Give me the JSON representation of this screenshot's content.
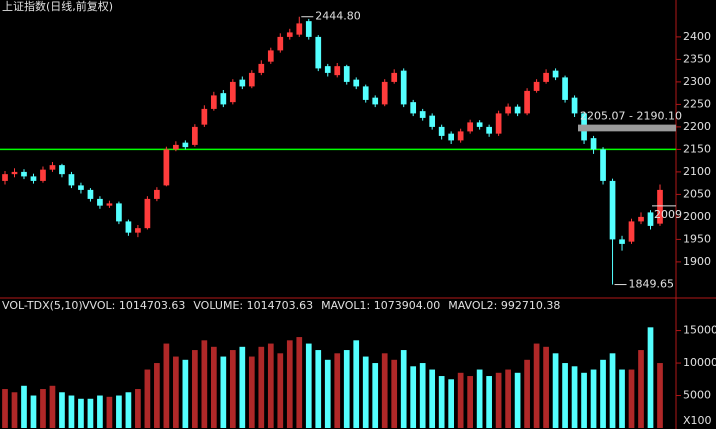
{
  "chart_data": [
    {
      "type": "candlestick",
      "title": "上证指数(日线,前复权)",
      "up_color": "#ff3c3c",
      "down_color": "#54ffff",
      "open": [
        2080,
        2095,
        2100,
        2090,
        2080,
        2105,
        2115,
        2095,
        2070,
        2060,
        2040,
        2025,
        2030,
        1990,
        1965,
        1975,
        2040,
        2070,
        2150,
        2165,
        2160,
        2205,
        2240,
        2275,
        2255,
        2305,
        2290,
        2320,
        2345,
        2370,
        2400,
        2405,
        2435,
        2400,
        2335,
        2315,
        2335,
        2305,
        2290,
        2265,
        2250,
        2300,
        2325,
        2255,
        2235,
        2225,
        2200,
        2185,
        2170,
        2190,
        2210,
        2200,
        2185,
        2230,
        2245,
        2230,
        2280,
        2300,
        2325,
        2310,
        2265,
        2230,
        2175,
        2150,
        2080,
        1950,
        1945,
        1990,
        2010,
        1985
      ],
      "high": [
        2102,
        2108,
        2106,
        2096,
        2112,
        2122,
        2118,
        2100,
        2076,
        2064,
        2046,
        2036,
        2034,
        1994,
        1982,
        2046,
        2066,
        2156,
        2168,
        2170,
        2206,
        2248,
        2278,
        2282,
        2306,
        2312,
        2326,
        2348,
        2376,
        2408,
        2418,
        2444.8,
        2440,
        2404,
        2340,
        2342,
        2338,
        2310,
        2294,
        2270,
        2306,
        2328,
        2330,
        2260,
        2240,
        2230,
        2205,
        2190,
        2196,
        2216,
        2215,
        2205,
        2236,
        2252,
        2250,
        2286,
        2306,
        2328,
        2330,
        2314,
        2270,
        2234,
        2180,
        2155,
        2085,
        1958,
        1996,
        2010,
        2015,
        2072
      ],
      "low": [
        2072,
        2088,
        2084,
        2074,
        2076,
        2100,
        2088,
        2064,
        2052,
        2034,
        2018,
        2020,
        1984,
        1958,
        1955,
        1972,
        2035,
        2068,
        2146,
        2150,
        2156,
        2200,
        2236,
        2244,
        2250,
        2284,
        2286,
        2315,
        2340,
        2365,
        2394,
        2400,
        2394,
        2324,
        2312,
        2310,
        2294,
        2284,
        2254,
        2244,
        2246,
        2296,
        2244,
        2224,
        2214,
        2194,
        2172,
        2162,
        2165,
        2185,
        2194,
        2178,
        2180,
        2225,
        2224,
        2226,
        2276,
        2296,
        2304,
        2254,
        2222,
        2162,
        2140,
        2072,
        1849.65,
        1925,
        1940,
        1984,
        1972,
        1980
      ],
      "close": [
        2095,
        2100,
        2090,
        2080,
        2105,
        2115,
        2095,
        2070,
        2060,
        2040,
        2025,
        2030,
        1990,
        1965,
        1975,
        2040,
        2060,
        2150,
        2160,
        2155,
        2200,
        2240,
        2270,
        2250,
        2300,
        2290,
        2320,
        2340,
        2370,
        2400,
        2410,
        2430,
        2400,
        2330,
        2320,
        2335,
        2300,
        2290,
        2260,
        2250,
        2300,
        2320,
        2250,
        2230,
        2220,
        2200,
        2180,
        2170,
        2190,
        2210,
        2200,
        2185,
        2230,
        2245,
        2230,
        2280,
        2300,
        2320,
        2310,
        2260,
        2230,
        2170,
        2150,
        2080,
        1950,
        1940,
        1990,
        2000,
        1980,
        2060
      ],
      "ylim": [
        1822,
        2482
      ],
      "yticks": [
        1900,
        1950,
        2000,
        2050,
        2100,
        2150,
        2200,
        2250,
        2300,
        2350,
        2400
      ],
      "hline": {
        "value": 2150,
        "color": "#00ff00"
      },
      "annotations": [
        {
          "label": "2444.80",
          "value": 2444.8
        },
        {
          "label": "1849.65",
          "value": 1849.65
        },
        {
          "label": "2205.07 - 2190.10",
          "range": [
            2190.1,
            2205.07
          ]
        },
        {
          "label": "2009",
          "value": 2009
        }
      ]
    },
    {
      "type": "bar",
      "indicator": "VOL-TDX(5,10)",
      "readouts": [
        {
          "text": "VVOL: 1014703.63",
          "color": "#ffffff"
        },
        {
          "text": "VOLUME: 1014703.63",
          "color": "#ffff00"
        },
        {
          "text": "MAVOL1: 1073904.00",
          "color": "#ffff00"
        },
        {
          "text": "MAVOL2: 992710.38",
          "color": "#ff40ff"
        }
      ],
      "values": [
        6000,
        5500,
        6500,
        5000,
        6000,
        6500,
        5500,
        5000,
        4500,
        4500,
        5000,
        4800,
        5000,
        5500,
        6000,
        9000,
        10000,
        13000,
        11000,
        10500,
        12000,
        13500,
        12500,
        11000,
        12000,
        12500,
        11000,
        12500,
        13000,
        11500,
        13500,
        14000,
        13000,
        12000,
        10500,
        11500,
        12000,
        13500,
        11000,
        10000,
        11500,
        10500,
        12000,
        9500,
        10000,
        9000,
        8000,
        7500,
        8500,
        8000,
        9000,
        8000,
        8500,
        9000,
        8500,
        10500,
        13000,
        12500,
        11500,
        10000,
        9500,
        8500,
        9000,
        10500,
        11500,
        9000,
        9000,
        12000,
        15500,
        10000
      ],
      "ylim": [
        0,
        19400
      ],
      "yticks": [
        5000,
        10000,
        15000
      ],
      "unit_label": "X100"
    }
  ]
}
